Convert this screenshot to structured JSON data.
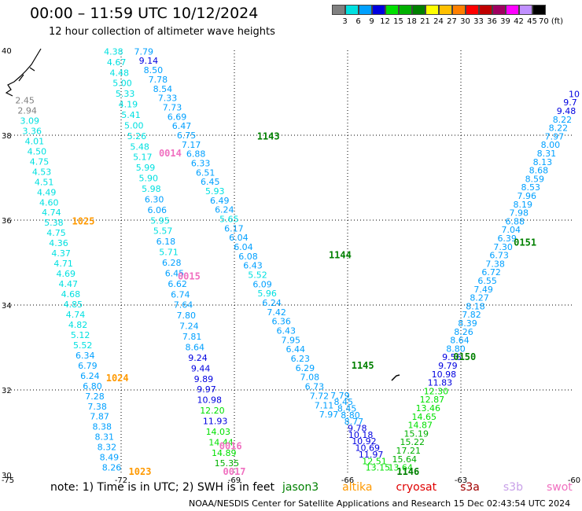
{
  "header": {
    "title": "00:00 – 11:59 UTC 10/12/2024",
    "subtitle": "12 hour collection of altimeter wave heights"
  },
  "colorbar": {
    "labels": [
      "3",
      "6",
      "9",
      "12",
      "15",
      "18",
      "21",
      "24",
      "27",
      "30",
      "33",
      "36",
      "39",
      "42",
      "45",
      "70 (ft)"
    ],
    "colors": [
      "#808080",
      "#00e0e0",
      "#00a0ff",
      "#0000e0",
      "#00e000",
      "#00b000",
      "#008000",
      "#ffff00",
      "#ffc000",
      "#ff8000",
      "#ff0000",
      "#c00000",
      "#a00060",
      "#ff00ff",
      "#c090ff",
      "#000000"
    ]
  },
  "footer": {
    "note": "note: 1) Time is in UTC; 2) SWH is in feet",
    "satellites": [
      {
        "name": "jason3",
        "color": "#008000"
      },
      {
        "name": "altika",
        "color": "#ff9900"
      },
      {
        "name": "cryosat",
        "color": "#e00000"
      },
      {
        "name": "s3a",
        "color": "#a00000"
      },
      {
        "name": "s3b",
        "color": "#c8a0e8"
      },
      {
        "name": "swot",
        "color": "#f070c0"
      }
    ],
    "credit": "NOAA/NESDIS Center for Satellite Applications and Research   15 Dec 02:43:54 UTC 2024"
  },
  "chart_data": {
    "type": "scatter",
    "title": "00:00 – 11:59 UTC 10/12/2024",
    "subtitle": "12 hour collection of altimeter wave heights",
    "xlabel": "",
    "ylabel": "",
    "xlim": [
      -75,
      -60
    ],
    "ylim": [
      30,
      40
    ],
    "x_ticks": [
      "-75",
      "-72",
      "-69",
      "-66",
      "-63",
      "-60"
    ],
    "y_ticks": [
      "30",
      "32",
      "34",
      "36",
      "38",
      "40"
    ],
    "grid": "dotted",
    "tracks": [
      {
        "name": "track-a",
        "lon_start": -74.55,
        "lat_start": 38.75,
        "lon_end": -72.25,
        "lat_end": 30.1,
        "values": [
          "2.45",
          "2.94",
          "3.09",
          "3.36",
          "4.01",
          "4.50",
          "4.75",
          "4.53",
          "4.51",
          "4.49",
          "4.60",
          "4.74",
          "5.38",
          "4.75",
          "4.36",
          "4.37",
          "4.71",
          "4.69",
          "4.47",
          "4.68",
          "4.85",
          "4.74",
          "4.82",
          "5.12",
          "5.52",
          "6.34",
          "6.79",
          "6.24",
          "6.80",
          "7.28",
          "7.38",
          "7.87",
          "8.38",
          "8.31",
          "8.32",
          "8.49",
          "8.26"
        ]
      },
      {
        "name": "track-b",
        "lon_start": -72.2,
        "lat_start": 39.9,
        "lon_end": -69.2,
        "lat_end": 30.2,
        "values": [
          "4.38",
          "4.67",
          "4.48",
          "5.00",
          "5.33",
          "4.19",
          "5.41",
          "5.00",
          "5.26",
          "5.48",
          "5.17",
          "5.99",
          "5.90",
          "5.98",
          "6.30",
          "6.06",
          "5.95",
          "5.57",
          "6.18",
          "5.71",
          "6.28",
          "6.45",
          "6.62",
          "6.74",
          "7.64",
          "7.80",
          "7.24",
          "7.81",
          "8.64",
          "9.24",
          "9.44",
          "9.89",
          "9.97",
          "10.98",
          "12.20",
          "11.93",
          "14.03",
          "14.44",
          "14.89",
          "15.35"
        ]
      },
      {
        "name": "track-c",
        "lon_start": -71.4,
        "lat_start": 39.9,
        "lon_end": -66.5,
        "lat_end": 31.35,
        "values": [
          "7.79",
          "9.14",
          "8.50",
          "7.78",
          "8.54",
          "7.33",
          "7.73",
          "6.69",
          "6.47",
          "6.75",
          "7.17",
          "6.88",
          "6.33",
          "6.51",
          "6.45",
          "5.93",
          "6.49",
          "6.24",
          "5.65",
          "6.17",
          "6.04",
          "6.04",
          "6.08",
          "6.43",
          "5.52",
          "6.09",
          "5.96",
          "6.24",
          "7.42",
          "6.36",
          "6.43",
          "7.95",
          "6.44",
          "6.23",
          "6.29",
          "7.08",
          "6.73",
          "7.72",
          "7.11",
          "7.97"
        ]
      },
      {
        "name": "track-d",
        "lon_start": -66.2,
        "lat_start": 31.8,
        "lon_end": -65.2,
        "lat_end": 30.1,
        "values": [
          "7.79",
          "8.45",
          "8.45",
          "8.80",
          "8.77",
          "9.78",
          "10.18",
          "10.92",
          "10.69",
          "11.97",
          "12.51",
          "13.15"
        ]
      },
      {
        "name": "track-e",
        "lon_start": -60.0,
        "lat_start": 38.9,
        "lon_end": -64.6,
        "lat_end": 30.1,
        "values": [
          "10",
          "9.7",
          "9.48",
          "8.22",
          "8.22",
          "7.97",
          "8.00",
          "8.31",
          "8.13",
          "8.68",
          "8.59",
          "8.53",
          "7.96",
          "8.19",
          "7.98",
          "6.88",
          "7.04",
          "6.39",
          "7.30",
          "6.73",
          "7.38",
          "6.72",
          "6.55",
          "7.49",
          "8.27",
          "8.18",
          "7.82",
          "8.39",
          "8.26",
          "8.64",
          "8.80",
          "9.56",
          "9.79",
          "10.98",
          "11.83",
          "12.30",
          "12.87",
          "13.46",
          "14.65",
          "14.87",
          "15.19",
          "15.22",
          "17.21",
          "15.64",
          "13.64"
        ]
      }
    ],
    "pass_labels": [
      {
        "text": "1143",
        "satellite": "jason3",
        "lon": -68.1,
        "lat": 37.9
      },
      {
        "text": "1144",
        "satellite": "jason3",
        "lon": -66.2,
        "lat": 35.1
      },
      {
        "text": "1145",
        "satellite": "jason3",
        "lon": -65.6,
        "lat": 32.5
      },
      {
        "text": "1146",
        "satellite": "jason3",
        "lon": -64.4,
        "lat": 30.0
      },
      {
        "text": "0151",
        "satellite": "jason3",
        "lon": -61.3,
        "lat": 35.4
      },
      {
        "text": "0150",
        "satellite": "jason3",
        "lon": -62.9,
        "lat": 32.7
      },
      {
        "text": "1025",
        "satellite": "altika",
        "lon": -73.0,
        "lat": 35.9
      },
      {
        "text": "1024",
        "satellite": "altika",
        "lon": -72.1,
        "lat": 32.2
      },
      {
        "text": "1023",
        "satellite": "altika",
        "lon": -71.5,
        "lat": 30.0
      },
      {
        "text": "0014",
        "satellite": "swot",
        "lon": -70.7,
        "lat": 37.5
      },
      {
        "text": "0015",
        "satellite": "swot",
        "lon": -70.2,
        "lat": 34.6
      },
      {
        "text": "0016",
        "satellite": "swot",
        "lon": -69.1,
        "lat": 30.6
      },
      {
        "text": "0017",
        "satellite": "swot",
        "lon": -69.0,
        "lat": 30.0
      }
    ]
  }
}
